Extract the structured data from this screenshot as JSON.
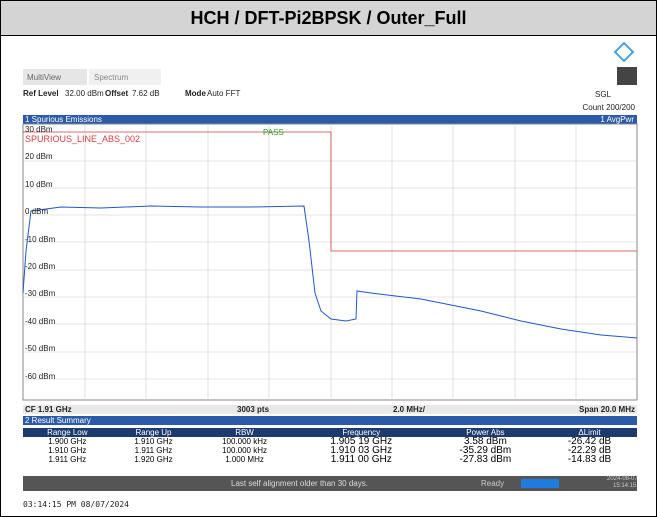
{
  "header": {
    "title": "HCH / DFT-Pi2BPSK / Outer_Full"
  },
  "toolbar": {
    "tabs": [
      "MultiView",
      "Spectrum"
    ],
    "ref_level_label": "Ref Level",
    "ref_level": "32.00 dBm",
    "offset_label": "Offset",
    "offset": "7.62 dB",
    "mode_label": "Mode",
    "mode": "Auto FFT",
    "sweep": "SGL",
    "count": "Count 200/200"
  },
  "plot": {
    "title": "1 Spurious Emissions",
    "trace_label": "1 AvgPwr",
    "limit_label": "SPURIOUS_LINE_ABS_002",
    "limit_check": "PASS",
    "y_labels": [
      "30 dBm",
      "20 dBm",
      "10 dBm",
      "0 dBm",
      "-10 dBm",
      "-20 dBm",
      "-30 dBm",
      "-40 dBm",
      "-50 dBm",
      "-60 dBm"
    ],
    "footer": {
      "center": "CF 1.91 GHz",
      "points": "3003 pts",
      "div": "2.0 MHz/",
      "span": "Span 20.0 MHz"
    }
  },
  "table": {
    "title": "2 Result Summary",
    "columns": [
      "Range Low",
      "Range Up",
      "RBW",
      "Frequency",
      "Power Abs",
      "ΔLimit"
    ],
    "rows": [
      [
        "1.900 GHz",
        "1.910 GHz",
        "100.000 kHz",
        "1.905 19 GHz",
        "3.58 dBm",
        "-26.42 dB"
      ],
      [
        "1.910 GHz",
        "1.911 GHz",
        "100.000 kHz",
        "1.910 03 GHz",
        "-35.29 dBm",
        "-22.29 dB"
      ],
      [
        "1.911 GHz",
        "1.920 GHz",
        "1.000 MHz",
        "1.911 00 GHz",
        "-27.83 dBm",
        "-14.83 dB"
      ]
    ]
  },
  "status": {
    "message": "Last self alignment older than 30 days.",
    "state": "Ready",
    "date": "2024-08-07",
    "time": "15:14:15"
  },
  "timestamp": "03:14:15 PM 08/07/2024"
}
